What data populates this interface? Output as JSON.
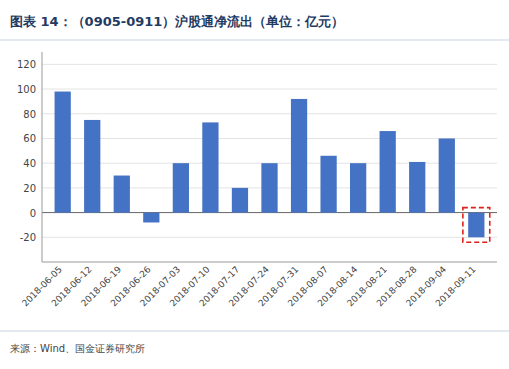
{
  "chart_data": {
    "type": "bar",
    "title": "图表 14：（0905-0911）沪股通净流出（单位：亿元）",
    "annotations": [
      "来源：Wind、国金证券研究所"
    ],
    "categories": [
      "2018-06-05",
      "2018-06-12",
      "2018-06-19",
      "2018-06-26",
      "2018-07-03",
      "2018-07-10",
      "2018-07-17",
      "2018-07-24",
      "2018-07-31",
      "2018-08-07",
      "2018-08-14",
      "2018-08-21",
      "2018-08-28",
      "2018-09-04",
      "2018-09-11"
    ],
    "values": [
      98,
      75,
      30,
      -8,
      40,
      73,
      20,
      40,
      92,
      46,
      40,
      66,
      41,
      60,
      -20
    ],
    "color": "#4472C4",
    "ylim": [
      -40,
      130
    ],
    "yticks": [
      -20,
      0,
      20,
      40,
      60,
      80,
      100,
      120
    ],
    "grid": true
  }
}
